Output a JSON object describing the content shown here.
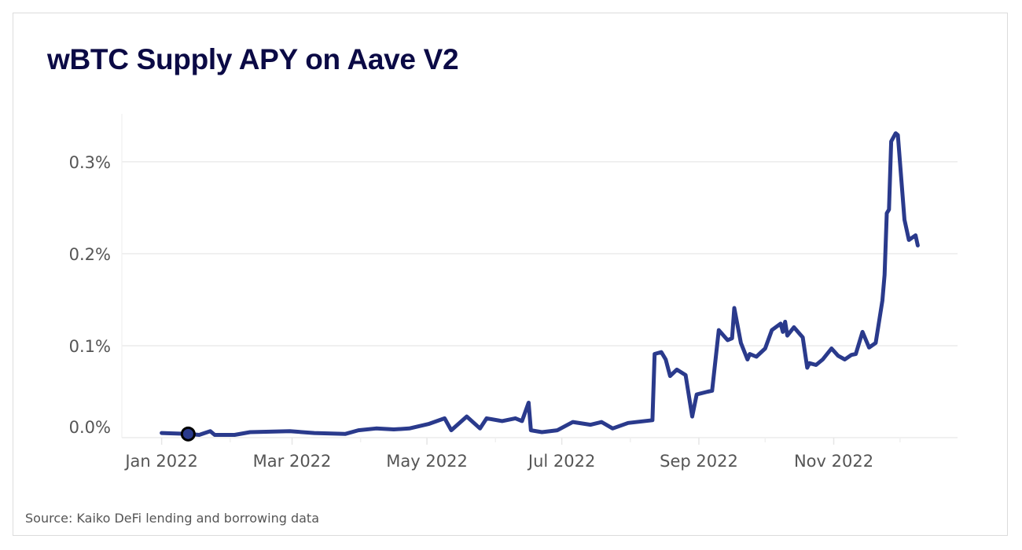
{
  "chart_data": {
    "type": "line",
    "title": "wBTC Supply APY on Aave V2",
    "source": "Source: Kaiko DeFi lending and borrowing data",
    "xlabel": "",
    "ylabel": "",
    "x_range": [
      "2021-12-14",
      "2022-12-27"
    ],
    "ylim": [
      0,
      0.352
    ],
    "y_unit": "%",
    "grid": "horizontal",
    "line_color": "#2a3a8c",
    "title_color": "#0b0a45",
    "y_ticks": [
      {
        "value": 0.0,
        "label": "0.0%"
      },
      {
        "value": 0.1,
        "label": "0.1%"
      },
      {
        "value": 0.2,
        "label": "0.2%"
      },
      {
        "value": 0.3,
        "label": "0.3%"
      }
    ],
    "x_ticks": [
      {
        "date": "2022-01-01",
        "label": "Jan 2022"
      },
      {
        "date": "2022-03-01",
        "label": "Mar 2022"
      },
      {
        "date": "2022-05-01",
        "label": "May 2022"
      },
      {
        "date": "2022-07-01",
        "label": "Jul 2022"
      },
      {
        "date": "2022-09-01",
        "label": "Sep 2022"
      },
      {
        "date": "2022-11-01",
        "label": "Nov 2022"
      }
    ],
    "x_minor_ticks": [
      "2022-02-01",
      "2022-04-01",
      "2022-06-01",
      "2022-08-01",
      "2022-10-01",
      "2022-12-01"
    ],
    "highlighted_point": {
      "date": "2022-01-13",
      "value": 0.004
    },
    "series": [
      {
        "points": [
          [
            "2022-01-01",
            0.005
          ],
          [
            "2022-01-13",
            0.004
          ],
          [
            "2022-01-18",
            0.003
          ],
          [
            "2022-01-23",
            0.007
          ],
          [
            "2022-01-25",
            0.003
          ],
          [
            "2022-02-03",
            0.003
          ],
          [
            "2022-02-10",
            0.006
          ],
          [
            "2022-02-28",
            0.007
          ],
          [
            "2022-03-11",
            0.005
          ],
          [
            "2022-03-25",
            0.004
          ],
          [
            "2022-03-31",
            0.008
          ],
          [
            "2022-04-08",
            0.01
          ],
          [
            "2022-04-16",
            0.009
          ],
          [
            "2022-04-23",
            0.01
          ],
          [
            "2022-05-02",
            0.015
          ],
          [
            "2022-05-09",
            0.021
          ],
          [
            "2022-05-12",
            0.008
          ],
          [
            "2022-05-19",
            0.023
          ],
          [
            "2022-05-25",
            0.01
          ],
          [
            "2022-05-28",
            0.021
          ],
          [
            "2022-06-04",
            0.018
          ],
          [
            "2022-06-10",
            0.021
          ],
          [
            "2022-06-13",
            0.018
          ],
          [
            "2022-06-16",
            0.038
          ],
          [
            "2022-06-17",
            0.008
          ],
          [
            "2022-06-22",
            0.006
          ],
          [
            "2022-06-29",
            0.008
          ],
          [
            "2022-07-06",
            0.017
          ],
          [
            "2022-07-14",
            0.014
          ],
          [
            "2022-07-19",
            0.017
          ],
          [
            "2022-07-24",
            0.01
          ],
          [
            "2022-07-31",
            0.016
          ],
          [
            "2022-08-11",
            0.019
          ],
          [
            "2022-08-12",
            0.091
          ],
          [
            "2022-08-15",
            0.093
          ],
          [
            "2022-08-17",
            0.085
          ],
          [
            "2022-08-19",
            0.067
          ],
          [
            "2022-08-22",
            0.074
          ],
          [
            "2022-08-26",
            0.068
          ],
          [
            "2022-08-29",
            0.023
          ],
          [
            "2022-08-31",
            0.047
          ],
          [
            "2022-09-05",
            0.05
          ],
          [
            "2022-09-07",
            0.051
          ],
          [
            "2022-09-10",
            0.117
          ],
          [
            "2022-09-14",
            0.106
          ],
          [
            "2022-09-16",
            0.108
          ],
          [
            "2022-09-17",
            0.141
          ],
          [
            "2022-09-20",
            0.103
          ],
          [
            "2022-09-23",
            0.085
          ],
          [
            "2022-09-24",
            0.091
          ],
          [
            "2022-09-27",
            0.088
          ],
          [
            "2022-10-01",
            0.097
          ],
          [
            "2022-10-04",
            0.117
          ],
          [
            "2022-10-08",
            0.124
          ],
          [
            "2022-10-09",
            0.115
          ],
          [
            "2022-10-10",
            0.126
          ],
          [
            "2022-10-11",
            0.111
          ],
          [
            "2022-10-14",
            0.12
          ],
          [
            "2022-10-18",
            0.109
          ],
          [
            "2022-10-20",
            0.076
          ],
          [
            "2022-10-21",
            0.081
          ],
          [
            "2022-10-24",
            0.079
          ],
          [
            "2022-10-27",
            0.085
          ],
          [
            "2022-10-31",
            0.097
          ],
          [
            "2022-11-03",
            0.089
          ],
          [
            "2022-11-06",
            0.085
          ],
          [
            "2022-11-09",
            0.09
          ],
          [
            "2022-11-11",
            0.091
          ],
          [
            "2022-11-14",
            0.115
          ],
          [
            "2022-11-17",
            0.098
          ],
          [
            "2022-11-20",
            0.103
          ],
          [
            "2022-11-23",
            0.149
          ],
          [
            "2022-11-24",
            0.177
          ],
          [
            "2022-11-25",
            0.244
          ],
          [
            "2022-11-26",
            0.248
          ],
          [
            "2022-11-27",
            0.322
          ],
          [
            "2022-11-29",
            0.331
          ],
          [
            "2022-11-30",
            0.329
          ],
          [
            "2022-12-03",
            0.237
          ],
          [
            "2022-12-05",
            0.215
          ],
          [
            "2022-12-08",
            0.22
          ],
          [
            "2022-12-09",
            0.209
          ]
        ]
      }
    ]
  }
}
